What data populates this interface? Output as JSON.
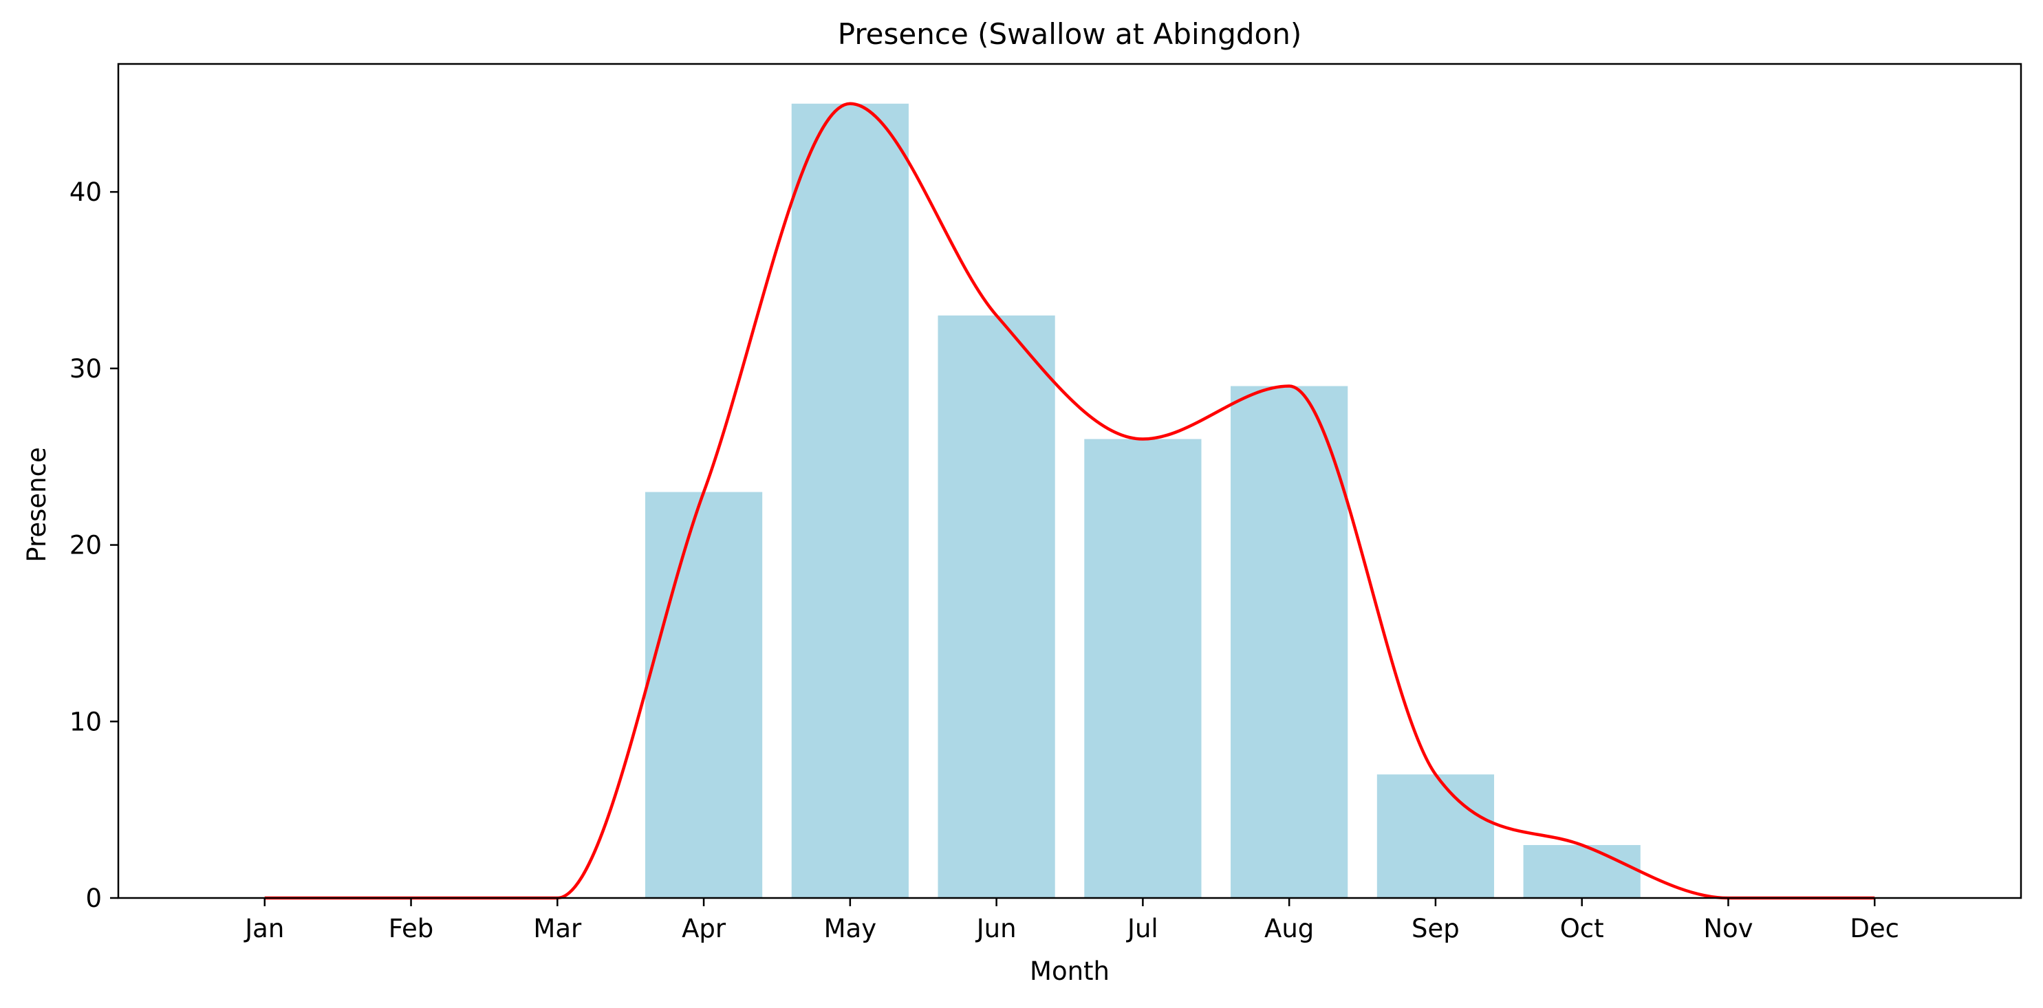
{
  "chart_data": {
    "type": "bar",
    "title": "Presence (Swallow at Abingdon)",
    "xlabel": "Month",
    "ylabel": "Presence",
    "categories": [
      "Jan",
      "Feb",
      "Mar",
      "Apr",
      "May",
      "Jun",
      "Jul",
      "Aug",
      "Sep",
      "Oct",
      "Nov",
      "Dec"
    ],
    "series": [
      {
        "type": "bar",
        "values": [
          0,
          0,
          0,
          23,
          45,
          33,
          26,
          29,
          7,
          3,
          0,
          0
        ],
        "color": "#add8e6"
      },
      {
        "type": "line",
        "smooth": true,
        "values": [
          0,
          0,
          0,
          23,
          45,
          33,
          26,
          29,
          7,
          3,
          0,
          0
        ],
        "color": "#ff0000"
      }
    ],
    "yticks": [
      0,
      10,
      20,
      30,
      40
    ],
    "ylim": [
      0,
      47.25
    ],
    "xlim": [
      -1,
      12
    ],
    "grid": false,
    "legend": "none"
  }
}
